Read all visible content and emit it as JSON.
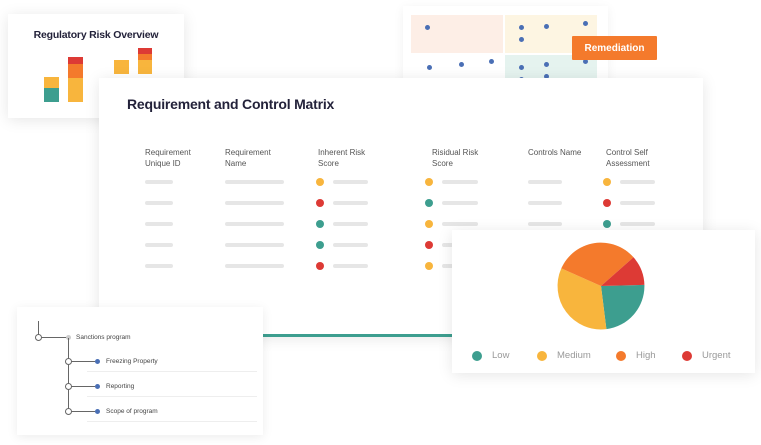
{
  "regulatory_risk_overview": {
    "title": "Regulatory Risk Overview"
  },
  "remediation_button": {
    "label": "Remediation"
  },
  "matrix": {
    "title": "Requirement and Control Matrix",
    "columns": [
      "Requirement\nUnique ID",
      "Requirement\nName",
      "Inherent Risk\nScore",
      "Risidual Risk\nScore",
      "Controls Name",
      "Control Self\nAssessment"
    ],
    "rows": [
      {
        "inherent": "medium",
        "residual": "medium",
        "assessment": "medium"
      },
      {
        "inherent": "urgent",
        "residual": "low",
        "assessment": "urgent"
      },
      {
        "inherent": "low",
        "residual": "medium",
        "assessment": "low"
      },
      {
        "inherent": "low",
        "residual": "urgent",
        "assessment": ""
      },
      {
        "inherent": "urgent",
        "residual": "medium",
        "assessment": ""
      }
    ]
  },
  "legend": [
    {
      "label": "Low",
      "color": "#3d9e8f"
    },
    {
      "label": "Medium",
      "color": "#f8b53d"
    },
    {
      "label": "High",
      "color": "#f47a2c"
    },
    {
      "label": "Urgent",
      "color": "#dd3a35"
    }
  ],
  "colors": {
    "low": "#3d9e8f",
    "medium": "#f8b53d",
    "high": "#f47a2c",
    "urgent": "#dd3a35",
    "dot_blue": "#4a6fb5",
    "accent_orange": "#f47a2c"
  },
  "tree": {
    "root": "Sanctions program",
    "children": [
      "Freezing Property",
      "Reporting",
      "Scope of program"
    ]
  }
}
